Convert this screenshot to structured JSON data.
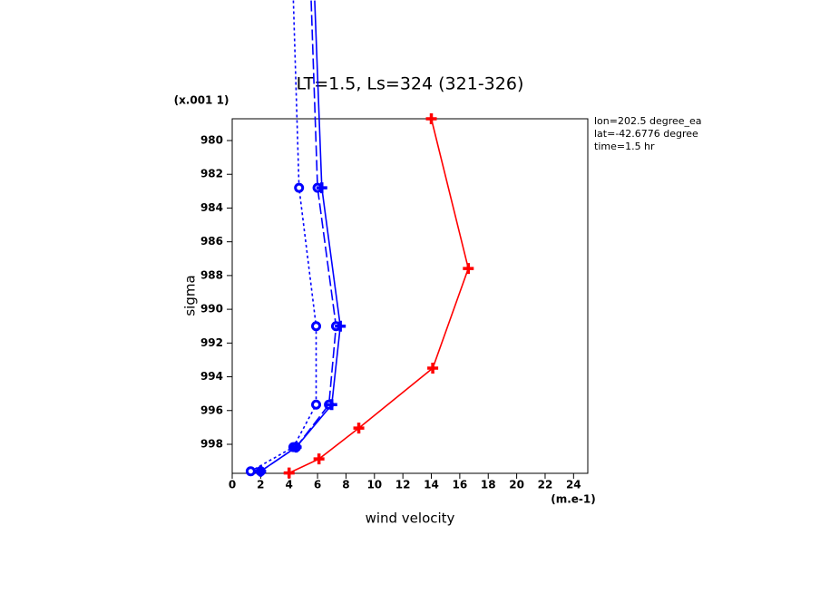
{
  "chart_data": {
    "type": "line",
    "title": "LT=1.5, Ls=324 (321-326)",
    "y_scale_note": "(x.001 1)",
    "ylabel": "sigma",
    "xlabel": "wind velocity",
    "x_unit": "(m.e-1)",
    "info": [
      "lon=202.5 degree_ea",
      "lat=-42.6776 degree",
      "time=1.5 hr"
    ],
    "xlim": [
      0,
      25
    ],
    "xticks": [
      0,
      2,
      4,
      6,
      8,
      10,
      12,
      14,
      16,
      18,
      20,
      22,
      24
    ],
    "ylim": [
      999.72,
      978.71
    ],
    "yticks": [
      980,
      982,
      984,
      986,
      988,
      990,
      992,
      994,
      996,
      998
    ],
    "series": [
      {
        "color": "#0000ff",
        "dash": "3,3",
        "marker": "circle",
        "x": [
          4.3,
          4.7,
          5.9,
          5.9,
          4.3,
          1.3
        ],
        "values": [
          971.7,
          982.8,
          991.0,
          995.65,
          998.17,
          999.6
        ]
      },
      {
        "color": "#0000ff",
        "dash": "12,4",
        "marker": "circle",
        "x": [
          5.55,
          6.0,
          7.3,
          6.8,
          4.5,
          2.0
        ],
        "values": [
          971.7,
          982.8,
          991.0,
          995.65,
          998.17,
          999.6
        ]
      },
      {
        "color": "#0000ff",
        "dash": "none",
        "marker": "plus",
        "x": [
          5.8,
          6.3,
          7.6,
          7.0,
          4.5,
          2.0
        ],
        "values": [
          971.7,
          982.8,
          991.0,
          995.65,
          998.17,
          999.6
        ]
      },
      {
        "color": "#ff0000",
        "dash": "none",
        "marker": "plus",
        "x": [
          14.0,
          16.6,
          14.1,
          8.9,
          6.1,
          4.0
        ],
        "values": [
          978.71,
          987.58,
          993.49,
          997.04,
          998.87,
          999.7
        ]
      }
    ]
  }
}
